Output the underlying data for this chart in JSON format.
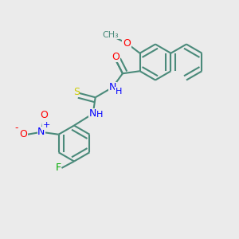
{
  "bg_color": "#ebebeb",
  "bond_color": "#4a8a7a",
  "bond_width": 1.5,
  "dbo": 0.1,
  "atom_colors": {
    "O": "#ff0000",
    "N": "#0000ff",
    "S": "#cccc00",
    "F": "#00aa00",
    "C": "#4a8a7a",
    "H": "#0000ff",
    "Nm": "#ff0000"
  },
  "font_size": 9,
  "fig_size": [
    3.0,
    3.0
  ],
  "dpi": 100
}
